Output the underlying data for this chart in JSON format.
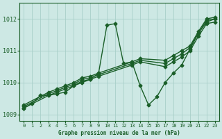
{
  "title": "Graphe pression niveau de la mer (hPa)",
  "bg_color": "#cde8e4",
  "grid_color": "#a8cfc9",
  "line_color": "#1a5e28",
  "xlim": [
    -0.5,
    23.5
  ],
  "ylim": [
    1008.8,
    1012.5
  ],
  "yticks": [
    1009,
    1010,
    1011,
    1012
  ],
  "xticks": [
    0,
    1,
    2,
    3,
    4,
    5,
    6,
    7,
    8,
    9,
    10,
    11,
    12,
    13,
    14,
    15,
    16,
    17,
    18,
    19,
    20,
    21,
    22,
    23
  ],
  "series_volatile": {
    "x": [
      0,
      1,
      2,
      3,
      4,
      5,
      6,
      7,
      8,
      9,
      10,
      11,
      12,
      13,
      14,
      15,
      16,
      17,
      18,
      19,
      20,
      21,
      22,
      23
    ],
    "y": [
      1009.2,
      1009.35,
      1009.6,
      1009.6,
      1009.65,
      1009.7,
      1009.9,
      1010.0,
      1010.1,
      1010.3,
      1011.8,
      1011.85,
      1010.6,
      1010.65,
      1009.9,
      1009.3,
      1009.55,
      1010.0,
      1010.3,
      1010.55,
      1011.05,
      1011.55,
      1011.9,
      1012.0
    ]
  },
  "series_straight": [
    {
      "x": [
        0,
        3,
        4,
        5,
        6,
        7,
        8,
        9,
        13,
        14,
        17,
        18,
        19,
        20,
        21,
        22,
        23
      ],
      "y": [
        1009.2,
        1009.6,
        1009.7,
        1009.8,
        1009.9,
        1010.05,
        1010.1,
        1010.2,
        1010.55,
        1010.65,
        1010.5,
        1010.65,
        1010.8,
        1011.0,
        1011.45,
        1011.85,
        1011.9
      ]
    },
    {
      "x": [
        0,
        3,
        4,
        5,
        6,
        7,
        8,
        9,
        13,
        14,
        17,
        18,
        19,
        20,
        21,
        22,
        23
      ],
      "y": [
        1009.25,
        1009.65,
        1009.75,
        1009.85,
        1009.95,
        1010.1,
        1010.15,
        1010.25,
        1010.6,
        1010.7,
        1010.6,
        1010.75,
        1010.9,
        1011.1,
        1011.55,
        1011.95,
        1012.0
      ]
    },
    {
      "x": [
        0,
        3,
        4,
        5,
        6,
        7,
        8,
        9,
        13,
        14,
        17,
        18,
        19,
        20,
        21,
        22,
        23
      ],
      "y": [
        1009.3,
        1009.7,
        1009.8,
        1009.9,
        1010.0,
        1010.15,
        1010.2,
        1010.3,
        1010.65,
        1010.75,
        1010.7,
        1010.85,
        1011.0,
        1011.15,
        1011.6,
        1012.0,
        1012.05
      ]
    }
  ],
  "marker": "D",
  "markersize": 2.5,
  "linewidth": 1.0
}
